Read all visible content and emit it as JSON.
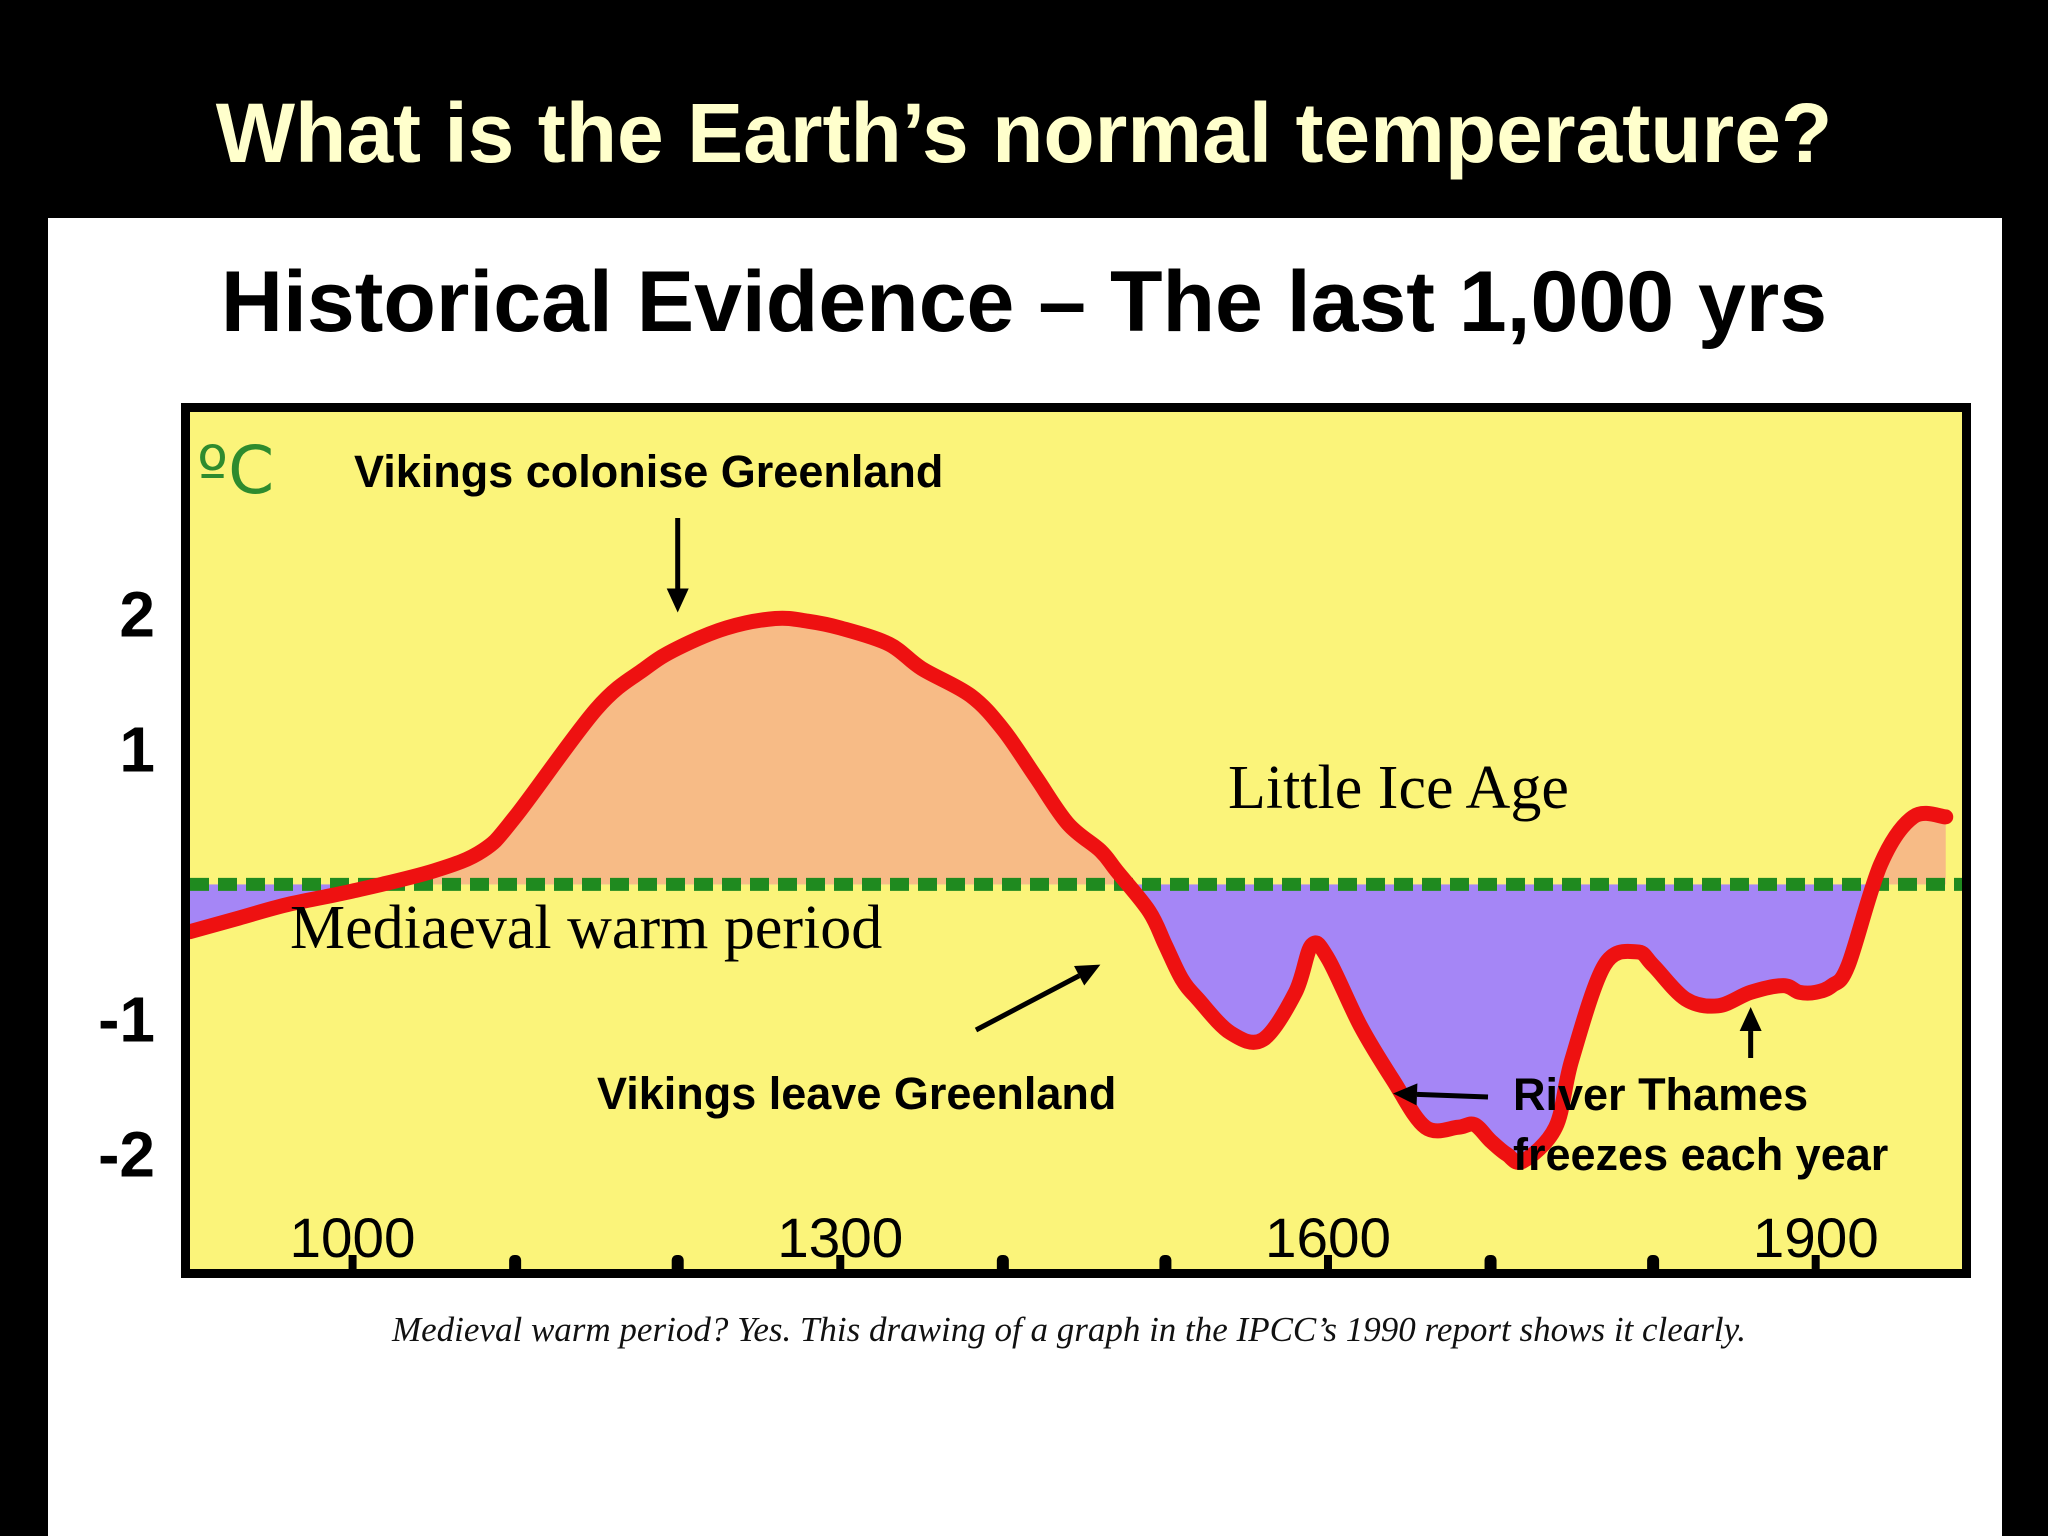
{
  "slide_title": "What is the Earth’s normal temperature?",
  "subtitle": "Historical Evidence – The last 1,000 yrs",
  "caption": "Medieval warm period? Yes. This drawing of a graph in the IPCC’s 1990 report shows it clearly.",
  "colors": {
    "background": "#000000",
    "title": "#FFFFCC",
    "panel": "#FFFFFF",
    "plot_bg": "#FBF47A",
    "curve": "#EE1111",
    "warm_fill": "#F7BB86",
    "cold_fill": "#A586F6",
    "baseline": "#1F8A1F",
    "unit": "#2E8B2E"
  },
  "chart_data": {
    "type": "line",
    "unit_label": "ºC",
    "x": [
      900,
      930,
      960,
      1000,
      1050,
      1080,
      1100,
      1150,
      1180,
      1200,
      1230,
      1260,
      1280,
      1300,
      1330,
      1350,
      1380,
      1400,
      1420,
      1440,
      1460,
      1470,
      1490,
      1500,
      1510,
      1520,
      1540,
      1560,
      1580,
      1590,
      1600,
      1620,
      1640,
      1660,
      1680,
      1690,
      1700,
      1710,
      1720,
      1740,
      1750,
      1770,
      1790,
      1800,
      1820,
      1840,
      1860,
      1880,
      1890,
      1900,
      1910,
      1920,
      1940,
      1960,
      1980
    ],
    "y": [
      -0.35,
      -0.25,
      -0.15,
      -0.05,
      0.1,
      0.25,
      0.5,
      1.3,
      1.6,
      1.75,
      1.9,
      1.97,
      1.95,
      1.9,
      1.78,
      1.6,
      1.4,
      1.15,
      0.8,
      0.45,
      0.25,
      0.1,
      -0.2,
      -0.45,
      -0.7,
      -0.85,
      -1.1,
      -1.15,
      -0.8,
      -0.45,
      -0.55,
      -1.05,
      -1.45,
      -1.8,
      -1.8,
      -1.78,
      -1.9,
      -2.0,
      -2.05,
      -1.8,
      -1.3,
      -0.6,
      -0.5,
      -0.6,
      -0.85,
      -0.9,
      -0.8,
      -0.75,
      -0.8,
      -0.8,
      -0.75,
      -0.6,
      0.15,
      0.5,
      0.5
    ],
    "xlim": [
      900,
      1990
    ],
    "ylim": [
      -2.85,
      3.5
    ],
    "x_ticks": [
      {
        "value": 1000,
        "label": "1000"
      },
      {
        "value": 1300,
        "label": "1300"
      },
      {
        "value": 1600,
        "label": "1600"
      },
      {
        "value": 1900,
        "label": "1900"
      }
    ],
    "y_ticks": [
      {
        "value": 2,
        "label": "2"
      },
      {
        "value": 1,
        "label": "1"
      },
      {
        "value": -1,
        "label": "-1"
      },
      {
        "value": -2,
        "label": "-2"
      }
    ],
    "x_minor_ticks": [
      1100,
      1200,
      1400,
      1500,
      1700,
      1800
    ],
    "baseline_value": 0,
    "fill_above_baseline": true,
    "fill_below_baseline": true,
    "grid": false,
    "region_labels": {
      "warm": "Mediaeval warm period",
      "cold": "Little Ice Age"
    },
    "annotations": [
      {
        "text": "Vikings colonise Greenland",
        "x": 1200,
        "y": 1.97
      },
      {
        "text": "Vikings leave Greenland",
        "x": 1460,
        "y": -0.55
      },
      {
        "text": "River Thames",
        "text2": "freezes each year",
        "x": 1640,
        "y": -1.55
      },
      {
        "text": "",
        "x": 1860,
        "y": -0.82
      }
    ]
  }
}
